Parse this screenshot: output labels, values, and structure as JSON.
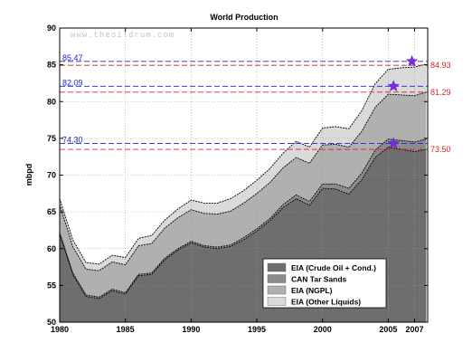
{
  "chart_data": {
    "type": "area",
    "title": "World Production",
    "ylabel": "mbpd",
    "xlabel": "",
    "watermark": "www.theoildrum.com",
    "xlim": [
      1980,
      2008
    ],
    "ylim": [
      50,
      90
    ],
    "xticks": [
      {
        "label": "1980",
        "value": 1980
      },
      {
        "label": "1985",
        "value": 1985
      },
      {
        "label": "1990",
        "value": 1990
      },
      {
        "label": "1995",
        "value": 1995
      },
      {
        "label": "2000",
        "value": 2000
      },
      {
        "label": "2005",
        "value": 2005
      },
      {
        "label": "2007",
        "value": 2007
      }
    ],
    "yticks": [
      "50",
      "55",
      "60",
      "65",
      "70",
      "75",
      "80",
      "85",
      "90"
    ],
    "grid": true,
    "legend_position": "bottom-right",
    "x": [
      1980,
      1981,
      1982,
      1983,
      1984,
      1985,
      1986,
      1987,
      1988,
      1989,
      1990,
      1991,
      1992,
      1993,
      1994,
      1995,
      1996,
      1997,
      1998,
      1999,
      2000,
      2001,
      2002,
      2003,
      2004,
      2005,
      2006,
      2007,
      2007.9
    ],
    "series": [
      {
        "name": "EIA (Crude Oil + Cond.)",
        "color": "#6e6e6e",
        "values": [
          62.0,
          56.5,
          53.5,
          53.2,
          54.3,
          53.8,
          56.3,
          56.5,
          58.5,
          59.8,
          60.8,
          60.2,
          60.0,
          60.3,
          61.2,
          62.4,
          63.8,
          65.6,
          66.8,
          65.9,
          68.2,
          68.1,
          67.4,
          69.4,
          72.4,
          73.8,
          73.5,
          73.2,
          73.5
        ]
      },
      {
        "name": "CAN Tar Sands",
        "color": "#8c8c8c",
        "values": [
          62.2,
          56.7,
          53.7,
          53.4,
          54.5,
          54.0,
          56.5,
          56.7,
          58.7,
          60.0,
          61.0,
          60.4,
          60.2,
          60.5,
          61.5,
          62.7,
          64.1,
          66.0,
          67.3,
          66.4,
          68.8,
          68.8,
          68.2,
          70.3,
          73.4,
          74.9,
          74.7,
          74.5,
          74.9
        ]
      },
      {
        "name": "EIA (NGPL)",
        "color": "#b0b0b0",
        "values": [
          66.0,
          60.3,
          57.2,
          57.0,
          58.2,
          57.8,
          60.4,
          60.7,
          62.8,
          64.2,
          65.3,
          64.8,
          64.7,
          65.1,
          66.2,
          67.5,
          69.0,
          71.0,
          72.4,
          71.6,
          74.1,
          74.2,
          73.8,
          76.0,
          79.2,
          81.0,
          80.9,
          80.8,
          81.3
        ]
      },
      {
        "name": "EIA (Other Liquids)",
        "color": "#dadada",
        "values": [
          66.8,
          61.2,
          58.1,
          57.9,
          59.1,
          58.8,
          61.4,
          61.8,
          63.9,
          65.4,
          66.6,
          66.2,
          66.2,
          66.8,
          67.9,
          69.3,
          70.9,
          73.0,
          74.6,
          73.8,
          76.4,
          76.6,
          76.3,
          78.8,
          82.4,
          84.4,
          84.6,
          84.7,
          85.1
        ]
      }
    ],
    "reference_lines": [
      {
        "label": "85.47",
        "value": 85.47,
        "color": "#2222cc",
        "side": "left"
      },
      {
        "label": "84.93",
        "value": 84.93,
        "color": "#dd2222",
        "side": "right"
      },
      {
        "label": "82.09",
        "value": 82.09,
        "color": "#2222cc",
        "side": "left"
      },
      {
        "label": "81.29",
        "value": 81.29,
        "color": "#dd2222",
        "side": "right"
      },
      {
        "label": "74.30",
        "value": 74.3,
        "color": "#2222cc",
        "side": "left"
      },
      {
        "label": "73.50",
        "value": 73.5,
        "color": "#dd2222",
        "side": "right"
      }
    ],
    "peak_markers": [
      {
        "x": 2006.8,
        "y": 85.47,
        "color": "#7a2be0"
      },
      {
        "x": 2005.4,
        "y": 82.09,
        "color": "#7a2be0"
      },
      {
        "x": 2005.4,
        "y": 74.3,
        "color": "#7a2be0"
      }
    ]
  }
}
